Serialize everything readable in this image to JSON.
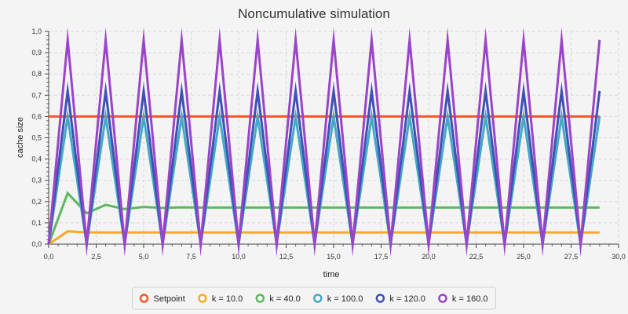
{
  "chart_data": {
    "type": "line",
    "title": "Noncumulative simulation",
    "xlabel": "time",
    "ylabel": "cache size",
    "xlim": [
      0,
      30
    ],
    "ylim": [
      0,
      1
    ],
    "x_ticks": [
      "0,0",
      "2,5",
      "5,0",
      "7,5",
      "10,0",
      "12,5",
      "15,0",
      "17,5",
      "20,0",
      "22,5",
      "25,0",
      "27,5",
      "30,0"
    ],
    "y_ticks": [
      "0,0",
      "0,1",
      "0,2",
      "0,3",
      "0,4",
      "0,5",
      "0,6",
      "0,7",
      "0,8",
      "0,9",
      "1,0"
    ],
    "grid": true,
    "legend_position": "bottom",
    "x": [
      0,
      1,
      2,
      3,
      4,
      5,
      6,
      7,
      8,
      9,
      10,
      11,
      12,
      13,
      14,
      15,
      16,
      17,
      18,
      19,
      20,
      21,
      22,
      23,
      24,
      25,
      26,
      27,
      28,
      29
    ],
    "series": [
      {
        "name": "Setpoint",
        "color": "#f0592a",
        "values": [
          0.6,
          0.6,
          0.6,
          0.6,
          0.6,
          0.6,
          0.6,
          0.6,
          0.6,
          0.6,
          0.6,
          0.6,
          0.6,
          0.6,
          0.6,
          0.6,
          0.6,
          0.6,
          0.6,
          0.6,
          0.6,
          0.6,
          0.6,
          0.6,
          0.6,
          0.6,
          0.6,
          0.6,
          0.6,
          0.6
        ]
      },
      {
        "name": "k = 10.0",
        "color": "#f9a825",
        "values": [
          0,
          0.06,
          0.055,
          0.055,
          0.055,
          0.055,
          0.055,
          0.055,
          0.055,
          0.055,
          0.055,
          0.055,
          0.055,
          0.055,
          0.055,
          0.055,
          0.055,
          0.055,
          0.055,
          0.055,
          0.055,
          0.055,
          0.055,
          0.055,
          0.055,
          0.055,
          0.055,
          0.055,
          0.055,
          0.055
        ]
      },
      {
        "name": "k = 40.0",
        "color": "#5cb85c",
        "values": [
          0,
          0.24,
          0.145,
          0.185,
          0.165,
          0.175,
          0.17,
          0.173,
          0.172,
          0.172,
          0.172,
          0.172,
          0.172,
          0.172,
          0.172,
          0.172,
          0.172,
          0.172,
          0.172,
          0.172,
          0.172,
          0.172,
          0.172,
          0.172,
          0.172,
          0.172,
          0.172,
          0.172,
          0.172,
          0.172
        ]
      },
      {
        "name": "k = 100.0",
        "color": "#45a8c8",
        "values": [
          0,
          0.6,
          0,
          0.6,
          0,
          0.6,
          0,
          0.6,
          0,
          0.6,
          0,
          0.6,
          0,
          0.6,
          0,
          0.6,
          0,
          0.6,
          0,
          0.6,
          0,
          0.6,
          0,
          0.6,
          0,
          0.6,
          0,
          0.6,
          0,
          0.6
        ]
      },
      {
        "name": "k = 120.0",
        "color": "#3f51b5",
        "values": [
          0,
          0.72,
          0,
          0.72,
          0,
          0.72,
          0,
          0.72,
          0,
          0.72,
          0,
          0.72,
          0,
          0.72,
          0,
          0.72,
          0,
          0.72,
          0,
          0.72,
          0,
          0.72,
          0,
          0.72,
          0,
          0.72,
          0,
          0.72,
          0,
          0.72
        ]
      },
      {
        "name": "k = 160.0",
        "color": "#9b44c8",
        "values": [
          0,
          0.96,
          0,
          0.96,
          0,
          0.96,
          0,
          0.96,
          0,
          0.96,
          0,
          0.96,
          0,
          0.96,
          0,
          0.96,
          0,
          0.96,
          0,
          0.96,
          0,
          0.96,
          0,
          0.96,
          0,
          0.96,
          0,
          0.96,
          0,
          0.96
        ]
      }
    ]
  }
}
